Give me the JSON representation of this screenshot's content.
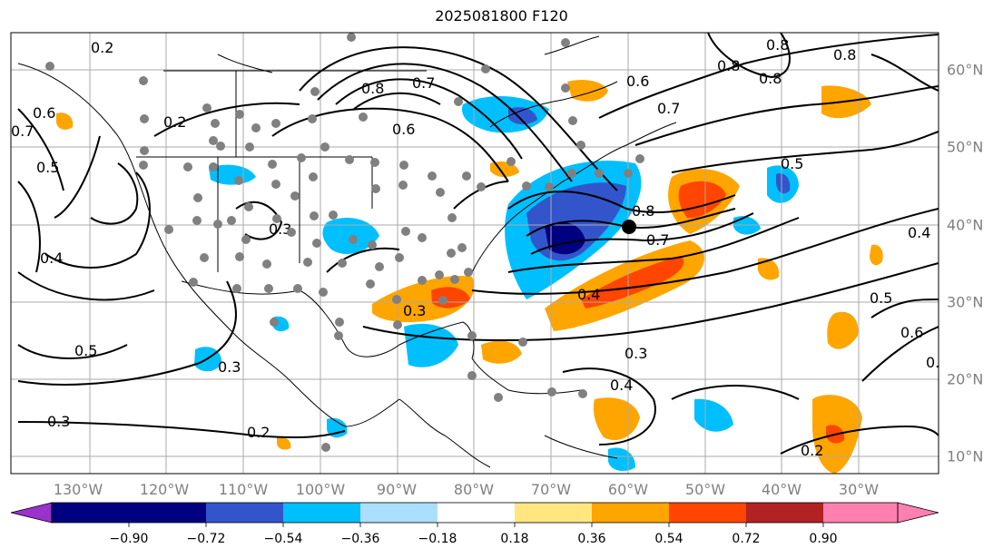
{
  "title": "2025081800 F120",
  "lon_labels": [
    "130°W",
    "120°W",
    "110°W",
    "100°W",
    "90°W",
    "80°W",
    "70°W",
    "60°W",
    "50°W",
    "40°W",
    "30°W"
  ],
  "lat_labels": [
    "60°N",
    "50°N",
    "40°N",
    "30°N",
    "20°N",
    "10°N"
  ],
  "colorbar": {
    "ticks": [
      "−0.90",
      "−0.72",
      "−0.54",
      "−0.36",
      "−0.18",
      "0.18",
      "0.36",
      "0.54",
      "0.72",
      "0.90"
    ],
    "colors": [
      "#9933cc",
      "#000080",
      "#3355cc",
      "#00bfff",
      "#aadfff",
      "#ffffff",
      "#ffe680",
      "#ffa500",
      "#ff4500",
      "#b22222",
      "#ff80b0"
    ]
  },
  "contour_labels": [
    "0.2",
    "0.2",
    "0.2",
    "0.2",
    "0.3",
    "0.3",
    "0.3",
    "0.3",
    "0.3",
    "0.3",
    "0.4",
    "0.4",
    "0.4",
    "0.4",
    "0.5",
    "0.5",
    "0.5",
    "0.5",
    "0.6",
    "0.6",
    "0.6",
    "0.6",
    "0.7",
    "0.7",
    "0.7",
    "0.7",
    "0.8",
    "0.8",
    "0.8",
    "0.8",
    "0.8",
    "0.8"
  ],
  "colors": {
    "contour": "#000000",
    "grid": "#aaaaaa",
    "station": "#808080",
    "marker": "#000000"
  }
}
